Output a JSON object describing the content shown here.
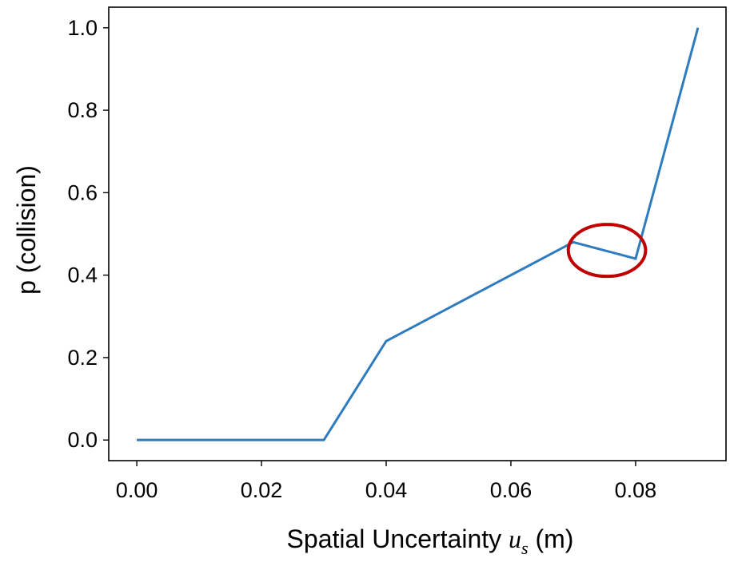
{
  "chart_data": {
    "type": "line",
    "title": "",
    "xlabel": "Spatial Uncertainty",
    "xlabel_symbol": "u",
    "xlabel_subscript": "s",
    "xlabel_unit": "(m)",
    "ylabel": "p (collision)",
    "xlim": [
      -0.0045,
      0.0945
    ],
    "ylim": [
      -0.05,
      1.05
    ],
    "xticks": [
      0.0,
      0.02,
      0.04,
      0.06,
      0.08
    ],
    "xtick_labels": [
      "0.00",
      "0.02",
      "0.04",
      "0.06",
      "0.08"
    ],
    "yticks": [
      0.0,
      0.2,
      0.4,
      0.6,
      0.8,
      1.0
    ],
    "ytick_labels": [
      "0.0",
      "0.2",
      "0.4",
      "0.6",
      "0.8",
      "1.0"
    ],
    "grid": false,
    "legend": "none",
    "series": [
      {
        "color": "#2e7bbf",
        "x": [
          0.0,
          0.01,
          0.02,
          0.03,
          0.04,
          0.05,
          0.06,
          0.07,
          0.08,
          0.09
        ],
        "y": [
          0.0,
          0.0,
          0.0,
          0.0,
          0.24,
          0.32,
          0.4,
          0.48,
          0.44,
          1.0
        ]
      }
    ],
    "annotations": [
      {
        "type": "ellipse",
        "color": "#c00000",
        "center": [
          0.0754,
          0.46
        ],
        "rx": 0.0062,
        "ry": 0.063
      }
    ]
  }
}
